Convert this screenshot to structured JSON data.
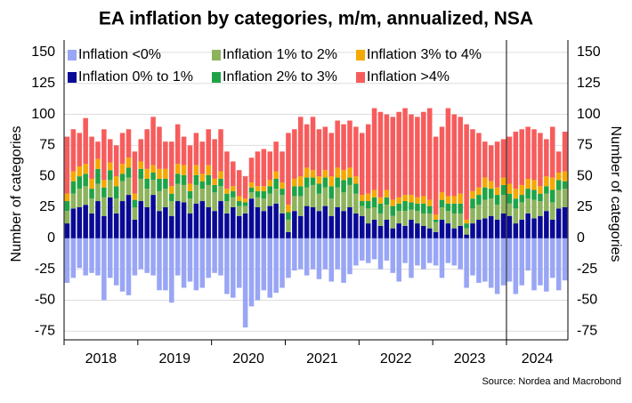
{
  "chart_data": {
    "type": "stacked_bar",
    "title": "EA inflation by categories, m/m, annualized, NSA",
    "ylabel": "Number of categories",
    "y2label": "Number of categories",
    "source": "Source: Nordea and Macrobond",
    "year_labels": [
      "2018",
      "2019",
      "2020",
      "2021",
      "2022",
      "2023",
      "2024"
    ],
    "categories": [
      null,
      null,
      null,
      null,
      null,
      null,
      null,
      null,
      null,
      null,
      null,
      null,
      null,
      null,
      null,
      null,
      null,
      null,
      null,
      null,
      null,
      null,
      null,
      null,
      null,
      null,
      null,
      null,
      null,
      null,
      null,
      null,
      null,
      null,
      null,
      null,
      null,
      null,
      null,
      null,
      null,
      null,
      null,
      null,
      null,
      null,
      null,
      null,
      null,
      null,
      null,
      null,
      null,
      null,
      null,
      null,
      null,
      null,
      null,
      null,
      null,
      null,
      null,
      null,
      null,
      null,
      null,
      null,
      null,
      null,
      null,
      null,
      null,
      null,
      null,
      null,
      null,
      null,
      null,
      null,
      null,
      null
    ],
    "ylim": [
      -82,
      160
    ],
    "yticks": [
      -75,
      -50,
      -25,
      0,
      25,
      50,
      75,
      100,
      125,
      150
    ],
    "y2lim": [
      -82,
      160
    ],
    "y2ticks": [
      -75,
      -50,
      -25,
      0,
      25,
      50,
      75,
      100,
      125,
      150
    ],
    "grid": true,
    "series": [
      {
        "name": "Inflation <0%",
        "color": "#99a6f5",
        "values": [
          -36,
          -32,
          -24,
          -30,
          -28,
          -30,
          -50,
          -32,
          -38,
          -43,
          -46,
          -30,
          -25,
          -28,
          -30,
          -42,
          -42,
          -52,
          -30,
          -40,
          -35,
          -42,
          -40,
          -32,
          -28,
          -30,
          -45,
          -48,
          -40,
          -72,
          -55,
          -50,
          -42,
          -48,
          -44,
          -40,
          -32,
          -26,
          -25,
          -30,
          -25,
          -33,
          -25,
          -35,
          -25,
          -36,
          -29,
          -22,
          -18,
          -20,
          -17,
          -25,
          -18,
          -28,
          -35,
          -20,
          -32,
          -22,
          -25,
          -20,
          -22,
          -32,
          -20,
          -22,
          -25,
          -40,
          -30,
          -36,
          -35,
          -40,
          -45,
          -38,
          -35,
          -45,
          -38,
          -26,
          -42,
          -38,
          -43,
          -32,
          -42,
          -34
        ]
      },
      {
        "name": "Inflation 0% to 1%",
        "color": "#0a0a96",
        "values": [
          12,
          24,
          25,
          27,
          20,
          30,
          18,
          33,
          20,
          30,
          35,
          15,
          30,
          25,
          35,
          22,
          25,
          18,
          30,
          29,
          20,
          28,
          30,
          25,
          22,
          30,
          20,
          25,
          18,
          20,
          32,
          25,
          22,
          26,
          28,
          20,
          5,
          22,
          18,
          26,
          25,
          22,
          26,
          18,
          25,
          22,
          25,
          20,
          18,
          12,
          15,
          10,
          15,
          8,
          12,
          10,
          15,
          12,
          10,
          8,
          5,
          15,
          12,
          8,
          10,
          3,
          12,
          15,
          16,
          18,
          15,
          20,
          18,
          12,
          15,
          20,
          16,
          18,
          22,
          15,
          24,
          25
        ]
      },
      {
        "name": "Inflation 1% to 2%",
        "color": "#8db35c",
        "values": [
          10,
          12,
          15,
          15,
          12,
          14,
          15,
          14,
          12,
          16,
          14,
          10,
          18,
          15,
          12,
          16,
          15,
          12,
          14,
          14,
          12,
          15,
          10,
          18,
          15,
          12,
          10,
          8,
          8,
          6,
          5,
          8,
          10,
          10,
          12,
          15,
          10,
          12,
          16,
          15,
          18,
          14,
          15,
          14,
          16,
          15,
          18,
          16,
          8,
          12,
          10,
          10,
          12,
          10,
          10,
          12,
          8,
          10,
          10,
          12,
          8,
          10,
          10,
          12,
          10,
          5,
          12,
          12,
          15,
          14,
          12,
          15,
          10,
          12,
          14,
          12,
          15,
          12,
          14,
          14,
          15,
          15
        ]
      },
      {
        "name": "Inflation 2% to 3%",
        "color": "#1fa347",
        "values": [
          8,
          10,
          10,
          10,
          8,
          12,
          8,
          8,
          10,
          6,
          8,
          6,
          8,
          8,
          6,
          10,
          8,
          6,
          8,
          8,
          6,
          8,
          6,
          8,
          6,
          6,
          6,
          5,
          4,
          3,
          4,
          5,
          6,
          6,
          8,
          5,
          6,
          8,
          8,
          8,
          6,
          8,
          8,
          10,
          8,
          10,
          6,
          8,
          4,
          6,
          8,
          8,
          6,
          8,
          6,
          8,
          6,
          6,
          8,
          6,
          2,
          6,
          6,
          8,
          8,
          4,
          8,
          8,
          10,
          8,
          8,
          8,
          8,
          8,
          6,
          8,
          8,
          6,
          6,
          10,
          8,
          6
        ]
      },
      {
        "name": "Inflation 3% to 4%",
        "color": "#f5a800",
        "values": [
          6,
          8,
          8,
          8,
          8,
          8,
          6,
          6,
          8,
          8,
          8,
          5,
          6,
          8,
          6,
          8,
          8,
          6,
          8,
          8,
          6,
          8,
          6,
          8,
          5,
          6,
          4,
          4,
          4,
          3,
          4,
          4,
          4,
          5,
          6,
          5,
          6,
          6,
          8,
          8,
          6,
          6,
          6,
          8,
          8,
          8,
          8,
          6,
          5,
          6,
          6,
          5,
          6,
          5,
          5,
          5,
          6,
          5,
          6,
          5,
          4,
          6,
          6,
          6,
          8,
          3,
          6,
          6,
          8,
          6,
          6,
          6,
          8,
          8,
          8,
          8,
          8,
          6,
          8,
          10,
          6,
          8
        ]
      },
      {
        "name": "Inflation >4%",
        "color": "#f75c5c",
        "values": [
          46,
          34,
          27,
          37,
          34,
          14,
          41,
          19,
          25,
          25,
          23,
          34,
          18,
          32,
          39,
          34,
          22,
          36,
          32,
          23,
          31,
          26,
          26,
          29,
          32,
          34,
          30,
          20,
          21,
          18,
          20,
          28,
          30,
          23,
          24,
          25,
          58,
          40,
          48,
          35,
          43,
          38,
          35,
          35,
          38,
          37,
          38,
          40,
          50,
          56,
          66,
          69,
          61,
          67,
          69,
          70,
          65,
          65,
          68,
          74,
          63,
          53,
          71,
          66,
          62,
          77,
          50,
          44,
          29,
          29,
          37,
          31,
          38,
          46,
          45,
          42,
          41,
          43,
          30,
          41,
          17,
          32
        ]
      }
    ]
  }
}
